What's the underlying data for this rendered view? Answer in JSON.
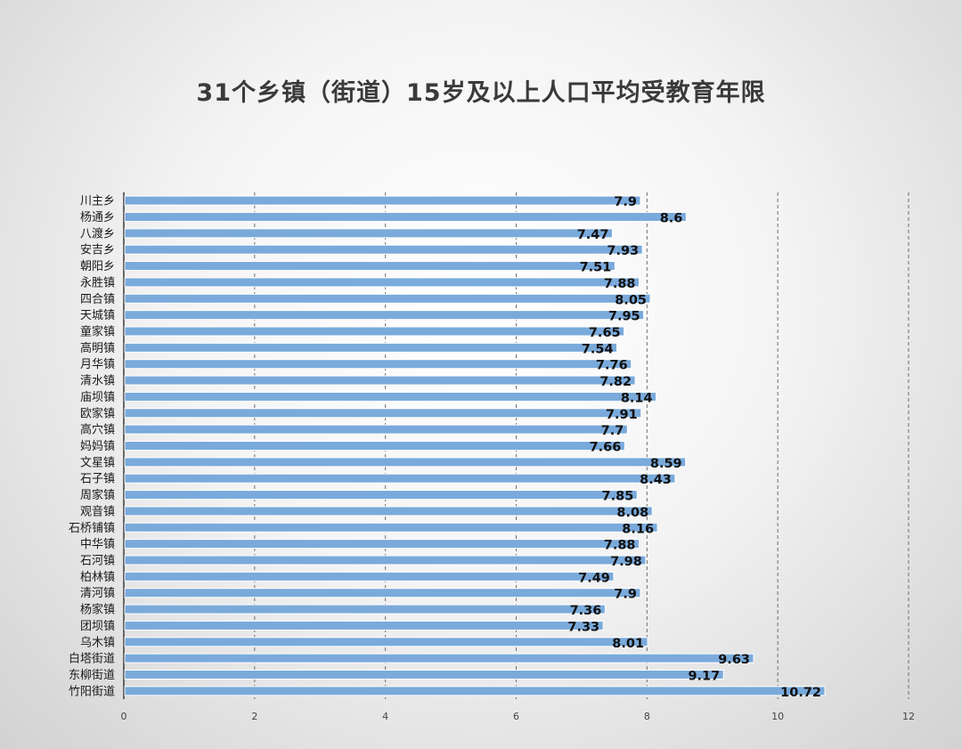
{
  "chart_data": {
    "type": "bar",
    "orientation": "horizontal",
    "title": "31个乡镇（街道）15岁及以上人口平均受教育年限",
    "xlabel": "",
    "ylabel": "",
    "categories": [
      "川主乡",
      "杨通乡",
      "八渡乡",
      "安吉乡",
      "朝阳乡",
      "永胜镇",
      "四合镇",
      "天城镇",
      "童家镇",
      "高明镇",
      "月华镇",
      "清水镇",
      "庙坝镇",
      "欧家镇",
      "高穴镇",
      "妈妈镇",
      "文星镇",
      "石子镇",
      "周家镇",
      "观音镇",
      "石桥铺镇",
      "中华镇",
      "石河镇",
      "柏林镇",
      "清河镇",
      "杨家镇",
      "团坝镇",
      "乌木镇",
      "白塔街道",
      "东柳街道",
      "竹阳街道"
    ],
    "values": [
      7.9,
      8.6,
      7.47,
      7.93,
      7.51,
      7.88,
      8.05,
      7.95,
      7.65,
      7.54,
      7.76,
      7.82,
      8.14,
      7.91,
      7.7,
      7.66,
      8.59,
      8.43,
      7.85,
      8.08,
      8.16,
      7.88,
      7.98,
      7.49,
      7.9,
      7.36,
      7.33,
      8.01,
      9.63,
      9.17,
      10.72
    ],
    "value_labels": [
      "7.9",
      "8.6",
      "7.47",
      "7.93",
      "7.51",
      "7.88",
      "8.05",
      "7.95",
      "7.65",
      "7.54",
      "7.76",
      "7.82",
      "8.14",
      "7.91",
      "7.7",
      "7.66",
      "8.59",
      "8.43",
      "7.85",
      "8.08",
      "8.16",
      "7.88",
      "7.98",
      "7.49",
      "7.9",
      "7.36",
      "7.33",
      "8.01",
      "9.63",
      "9.17",
      "10.72"
    ],
    "xlim": [
      0,
      12
    ],
    "xticks": [
      "0",
      "2",
      "4",
      "6",
      "8",
      "10",
      "12"
    ],
    "grid": true,
    "legend": "none",
    "bar_color": "#7aaadb",
    "bar_edge_color": "#ffffff",
    "grid_color": "#6e6e6e"
  }
}
